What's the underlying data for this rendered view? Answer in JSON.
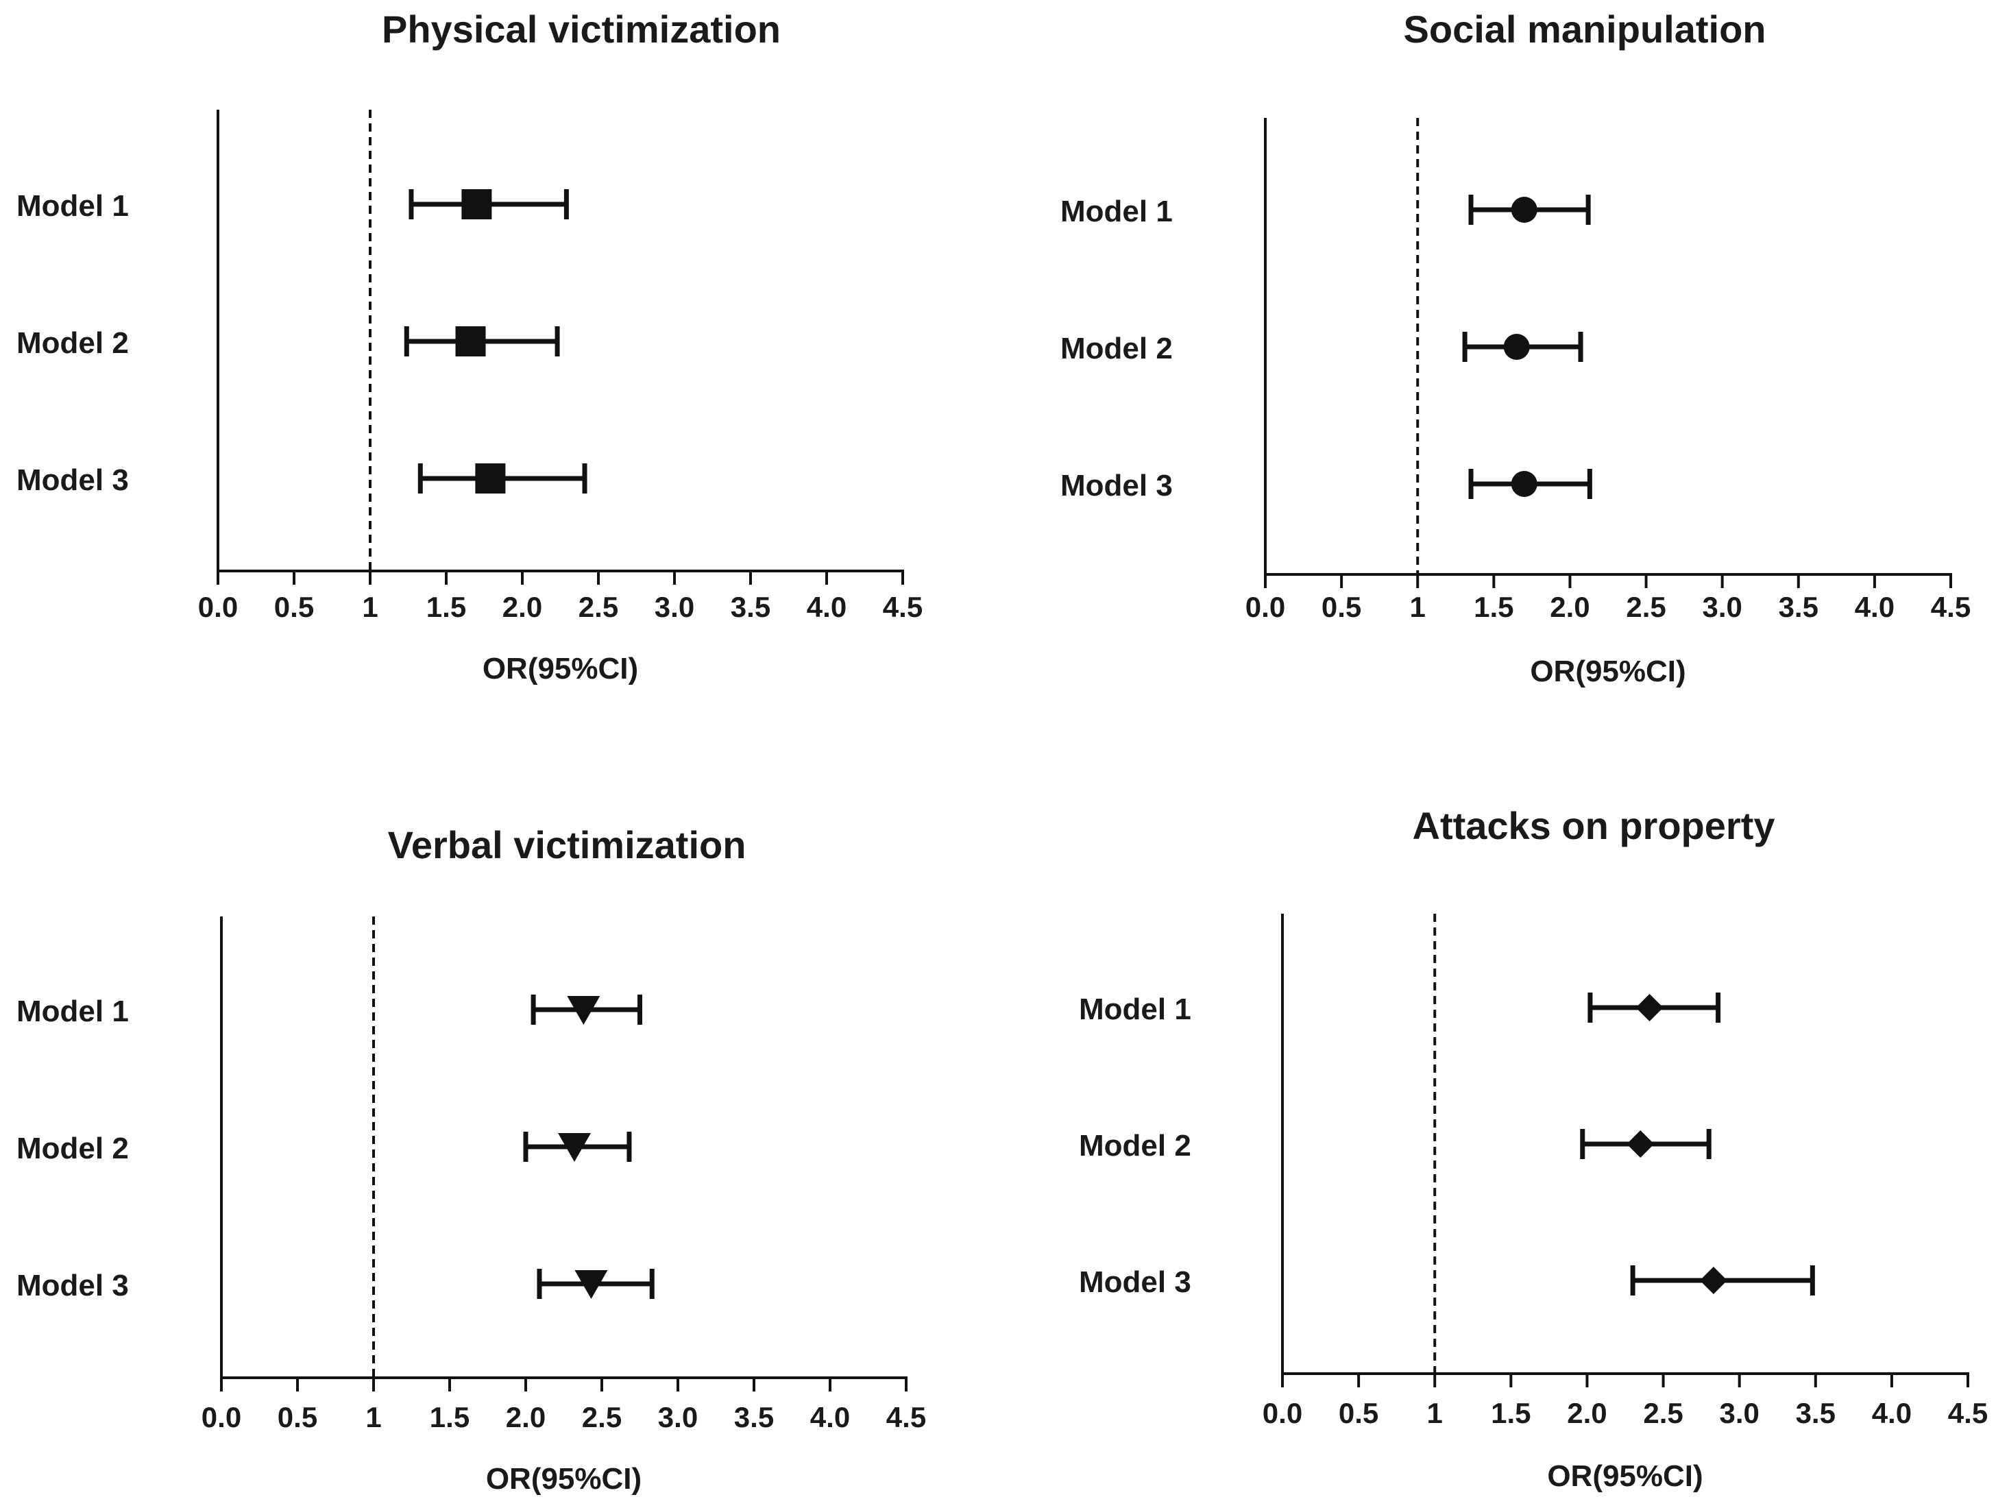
{
  "chart_data": [
    {
      "type": "forest",
      "title": "Physical victimization",
      "xlabel": "OR(95%CI)",
      "marker": "square",
      "reference_line": 1,
      "xlim": [
        0,
        4.5
      ],
      "xticks": [
        "0.0",
        "0.5",
        "1",
        "1.5",
        "2.0",
        "2.5",
        "3.0",
        "3.5",
        "4.0",
        "4.5"
      ],
      "models": [
        {
          "label": "Model 1",
          "or": 1.7,
          "lower": 1.27,
          "upper": 2.29
        },
        {
          "label": "Model 2",
          "or": 1.66,
          "lower": 1.24,
          "upper": 2.23
        },
        {
          "label": "Model 3",
          "or": 1.79,
          "lower": 1.33,
          "upper": 2.41
        }
      ]
    },
    {
      "type": "forest",
      "title": "Social manipulation",
      "xlabel": "OR(95%CI)",
      "marker": "circle",
      "reference_line": 1,
      "xlim": [
        0,
        4.5
      ],
      "xticks": [
        "0.0",
        "0.5",
        "1",
        "1.5",
        "2.0",
        "2.5",
        "3.0",
        "3.5",
        "4.0",
        "4.5"
      ],
      "models": [
        {
          "label": "Model 1",
          "or": 1.7,
          "lower": 1.35,
          "upper": 2.12
        },
        {
          "label": "Model 2",
          "or": 1.65,
          "lower": 1.31,
          "upper": 2.07
        },
        {
          "label": "Model 3",
          "or": 1.7,
          "lower": 1.35,
          "upper": 2.13
        }
      ]
    },
    {
      "type": "forest",
      "title": "Verbal victimization",
      "xlabel": "OR(95%CI)",
      "marker": "triangle-down",
      "reference_line": 1,
      "xlim": [
        0,
        4.5
      ],
      "xticks": [
        "0.0",
        "0.5",
        "1",
        "1.5",
        "2.0",
        "2.5",
        "3.0",
        "3.5",
        "4.0",
        "4.5"
      ],
      "models": [
        {
          "label": "Model 1",
          "or": 2.38,
          "lower": 2.05,
          "upper": 2.75
        },
        {
          "label": "Model 2",
          "or": 2.32,
          "lower": 2.0,
          "upper": 2.68
        },
        {
          "label": "Model 3",
          "or": 2.43,
          "lower": 2.09,
          "upper": 2.83
        }
      ]
    },
    {
      "type": "forest",
      "title": "Attacks on property",
      "xlabel": "OR(95%CI)",
      "marker": "diamond",
      "reference_line": 1,
      "xlim": [
        0,
        4.5
      ],
      "xticks": [
        "0.0",
        "0.5",
        "1",
        "1.5",
        "2.0",
        "2.5",
        "3.0",
        "3.5",
        "4.0",
        "4.5"
      ],
      "models": [
        {
          "label": "Model 1",
          "or": 2.41,
          "lower": 2.02,
          "upper": 2.86
        },
        {
          "label": "Model 2",
          "or": 2.35,
          "lower": 1.97,
          "upper": 2.8
        },
        {
          "label": "Model 3",
          "or": 2.83,
          "lower": 2.3,
          "upper": 3.48
        }
      ]
    }
  ]
}
